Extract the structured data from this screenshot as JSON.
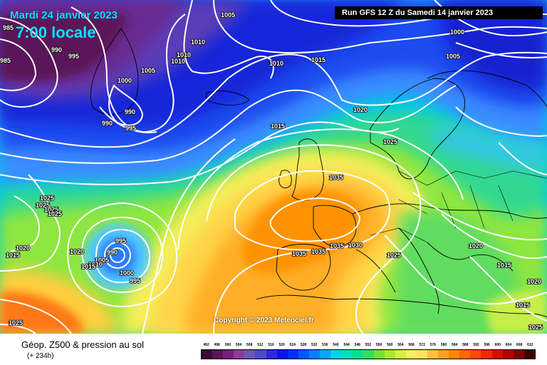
{
  "header": {
    "date": "Mardi 24 janvier 2023",
    "time": "7:00 locale",
    "run": "Run GFS 12 Z du Samedi 14 janvier 2023"
  },
  "copyright": "Copyright © 2023 Meteociel.fr",
  "footer": {
    "title": "Géop. Z500 & pression au sol",
    "subtitle": "(+ 234h)"
  },
  "isobar_labels": {
    "l1": "985",
    "l2": "985",
    "l3": "990",
    "l4": "995",
    "l5": "1005",
    "l6": "1010",
    "l7": "1010",
    "l8": "1010",
    "l9": "1000",
    "l10": "1005",
    "l11": "990",
    "l12": "990",
    "l13": "995",
    "l14": "1010",
    "l15": "1015",
    "l16": "1000",
    "l17": "1005",
    "l18": "1020",
    "l19": "1015",
    "l20": "1025",
    "l21": "1035",
    "l22": "1025",
    "l23": "1025",
    "l24": "1025",
    "l25": "1025",
    "l26": "1020",
    "l27": "1015",
    "l28": "1020",
    "l29": "995",
    "l30": "990",
    "l31": "1005",
    "l32": "1010",
    "l33": "1015",
    "l34": "1000",
    "l35": "995",
    "l36": "1025",
    "l37": "1035",
    "l38": "1035",
    "l39": "1035",
    "l40": "1030",
    "l41": "1025",
    "l42": "1020",
    "l43": "1015",
    "l44": "1020",
    "l45": "1015",
    "l46": "1025"
  },
  "scale": {
    "ticks": [
      "492",
      "496",
      "500",
      "504",
      "508",
      "512",
      "516",
      "520",
      "524",
      "528",
      "532",
      "536",
      "540",
      "544",
      "548",
      "552",
      "556",
      "560",
      "564",
      "568",
      "572",
      "576",
      "580",
      "584",
      "588",
      "592",
      "596",
      "600",
      "604",
      "608",
      "612"
    ],
    "colors": [
      "#3c0a3c",
      "#5a1458",
      "#7a1e7a",
      "#8e3a9a",
      "#6e56b4",
      "#4a4ac6",
      "#2a2ad8",
      "#0a14ea",
      "#0030ff",
      "#0058ff",
      "#0080ff",
      "#00a8ff",
      "#00cfee",
      "#00dcc0",
      "#00e090",
      "#30e060",
      "#70e030",
      "#a8e830",
      "#d8f040",
      "#f8f060",
      "#ffe060",
      "#ffc040",
      "#ffa020",
      "#ff8800",
      "#ff6800",
      "#ff4800",
      "#f02800",
      "#d01000",
      "#b00000",
      "#800000",
      "#400000"
    ]
  }
}
